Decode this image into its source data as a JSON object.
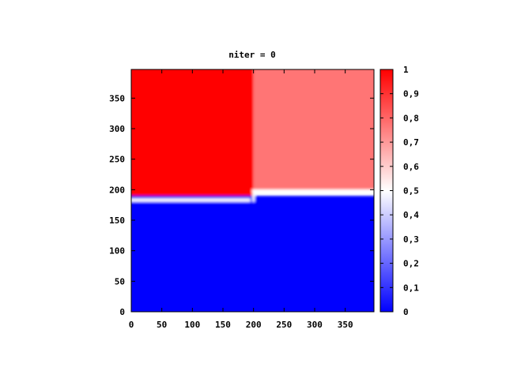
{
  "chart_data": {
    "type": "heatmap",
    "title": "niter = 0",
    "xlabel": "",
    "ylabel": "",
    "xlim": [
      0,
      397
    ],
    "ylim": [
      0,
      397
    ],
    "x_ticks": [
      0,
      50,
      100,
      150,
      200,
      250,
      300,
      350
    ],
    "y_ticks": [
      0,
      50,
      100,
      150,
      200,
      250,
      300,
      350
    ],
    "x_tick_labels": [
      "0",
      "50",
      "100",
      "150",
      "200",
      "250",
      "300",
      "350"
    ],
    "y_tick_labels": [
      "0",
      "50",
      "100",
      "150",
      "200",
      "250",
      "300",
      "350"
    ],
    "colorbar": {
      "range": [
        0,
        1
      ],
      "ticks": [
        0,
        0.1,
        0.2,
        0.3,
        0.4,
        0.5,
        0.6,
        0.7,
        0.8,
        0.9,
        1
      ],
      "tick_labels": [
        "0",
        "0,1",
        "0,2",
        "0,3",
        "0,4",
        "0,5",
        "0,6",
        "0,7",
        "0,8",
        "0,9",
        "1"
      ],
      "colors": [
        "#0000ff",
        "#ffffff",
        "#ff0000"
      ]
    },
    "regions": [
      {
        "x": [
          0,
          200
        ],
        "y": [
          183,
          397
        ],
        "value": 1.0
      },
      {
        "x": [
          200,
          397
        ],
        "y": [
          198,
          397
        ],
        "value": 0.77
      },
      {
        "x": [
          0,
          397
        ],
        "y": [
          0,
          190
        ],
        "value": 0.0
      }
    ],
    "interface": {
      "left": {
        "x": [
          0,
          200
        ],
        "y": 183
      },
      "right": {
        "x": [
          200,
          397
        ],
        "y": 198
      },
      "vertical_x": 200
    }
  }
}
